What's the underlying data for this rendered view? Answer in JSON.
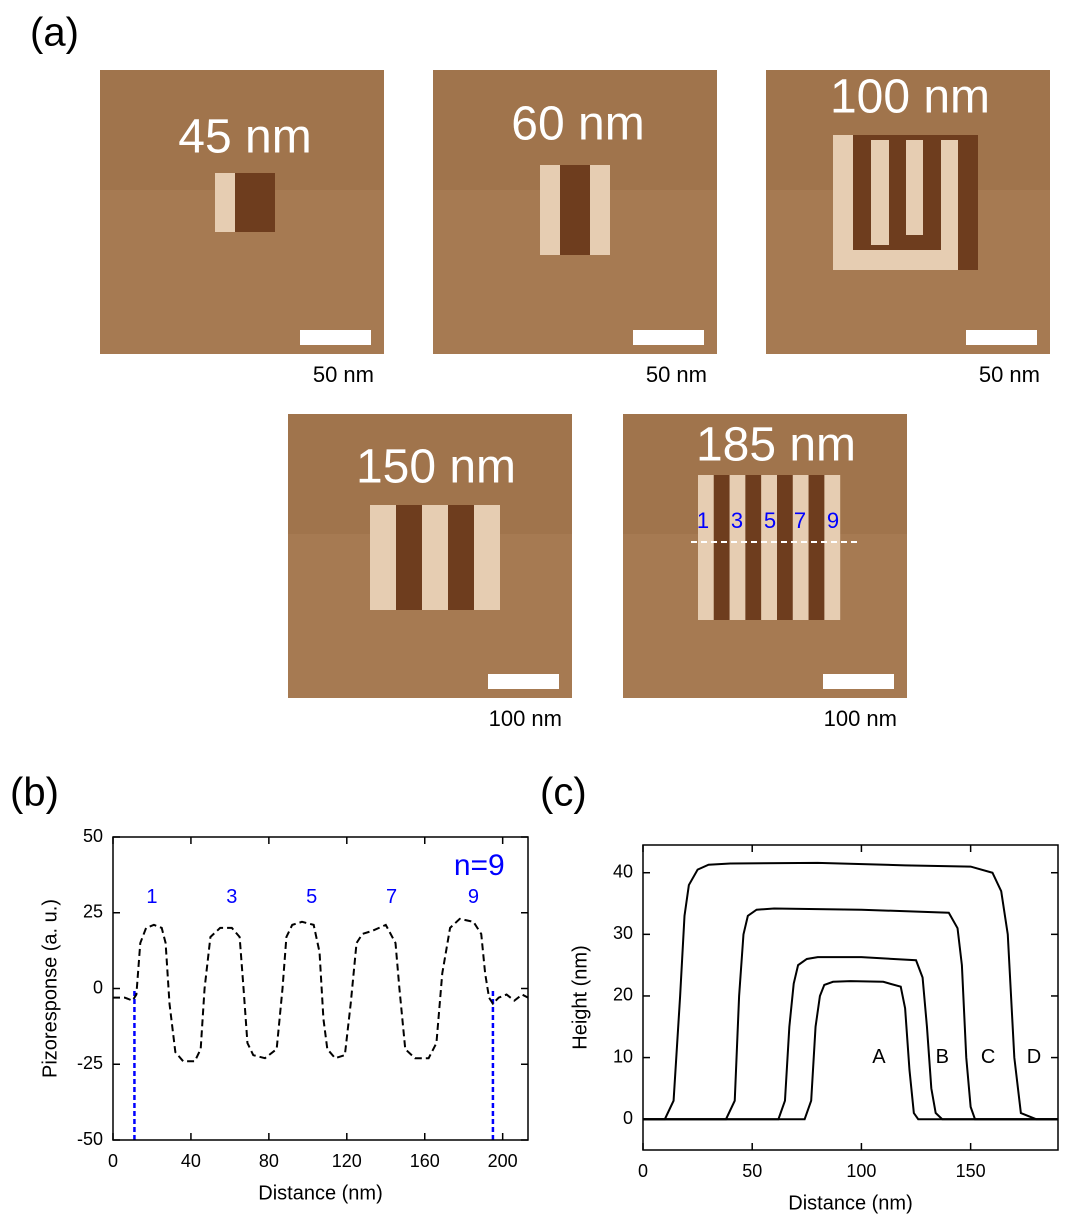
{
  "panel_a": {
    "label": "(a)",
    "images": [
      {
        "title": "45 nm",
        "scale": "50 nm"
      },
      {
        "title": "60 nm",
        "scale": "50 nm"
      },
      {
        "title": "100 nm",
        "scale": "50 nm"
      },
      {
        "title": "150 nm",
        "scale": "100 nm"
      },
      {
        "title": "185 nm",
        "scale": "100 nm"
      }
    ],
    "stripe_labels": [
      "1",
      "3",
      "5",
      "7",
      "9"
    ]
  },
  "chart_data": [
    {
      "type": "line",
      "panel_label": "(b)",
      "xlabel": "Distance (nm)",
      "ylabel": "Pizoresponse (a. u.)",
      "xlim": [
        0,
        213
      ],
      "ylim": [
        -50,
        50
      ],
      "xticks": [
        0,
        40,
        80,
        120,
        160,
        200
      ],
      "yticks": [
        -50,
        -25,
        0,
        25,
        50
      ],
      "series": [
        {
          "color": "#000000",
          "line_style": "dashed",
          "x": [
            0,
            6,
            10,
            12,
            14,
            17,
            21,
            25,
            27,
            29,
            32,
            36,
            42,
            45,
            47,
            50,
            55,
            61,
            65,
            67,
            69,
            72,
            78,
            84,
            87,
            89,
            92,
            97,
            103,
            106,
            108,
            110,
            114,
            119,
            122,
            125,
            128,
            133,
            140,
            145,
            147,
            150,
            155,
            162,
            166,
            169,
            173,
            178,
            185,
            189,
            191,
            193,
            195,
            198,
            202,
            206,
            210,
            213
          ],
          "values": [
            -3,
            -3,
            -4,
            -2,
            15,
            20,
            21,
            20,
            15,
            -5,
            -21,
            -24,
            -24,
            -20,
            0,
            17,
            20,
            20,
            17,
            0,
            -18,
            -22,
            -23,
            -20,
            0,
            17,
            21,
            22,
            21,
            12,
            -10,
            -20,
            -23,
            -22,
            -5,
            15,
            18,
            19,
            21,
            15,
            0,
            -20,
            -23,
            -23,
            -18,
            5,
            20,
            23,
            22,
            18,
            5,
            -3,
            -5,
            -3,
            -2,
            -4,
            -2,
            -3
          ]
        }
      ],
      "vlines": [
        11,
        195
      ],
      "vline_color": "#0000ff",
      "annotations": [
        {
          "text": "n=9",
          "x": 188,
          "y": 40,
          "color": "#0000ff",
          "size": 30
        },
        {
          "text": "1",
          "x": 20,
          "y": 30,
          "color": "#0000ff",
          "size": 20
        },
        {
          "text": "3",
          "x": 61,
          "y": 30,
          "color": "#0000ff",
          "size": 20
        },
        {
          "text": "5",
          "x": 102,
          "y": 30,
          "color": "#0000ff",
          "size": 20
        },
        {
          "text": "7",
          "x": 143,
          "y": 30,
          "color": "#0000ff",
          "size": 20
        },
        {
          "text": "9",
          "x": 185,
          "y": 30,
          "color": "#0000ff",
          "size": 20
        }
      ]
    },
    {
      "type": "line",
      "panel_label": "(c)",
      "xlabel": "Distance (nm)",
      "ylabel": "Height (nm)",
      "xlim": [
        0,
        190
      ],
      "ylim": [
        -5,
        44.5
      ],
      "xticks": [
        0,
        50,
        100,
        150
      ],
      "yticks": [
        0,
        10,
        20,
        30,
        40
      ],
      "series": [
        {
          "color": "#000000",
          "line_style": "solid",
          "x": [
            0,
            74,
            77,
            79,
            81,
            83,
            87,
            95,
            110,
            118,
            120,
            122,
            124,
            126,
            190
          ],
          "values": [
            0,
            0,
            3,
            15,
            20,
            21.8,
            22.3,
            22.4,
            22.3,
            21.5,
            18,
            8,
            1,
            0,
            0
          ]
        },
        {
          "color": "#000000",
          "line_style": "solid",
          "x": [
            0,
            62,
            65,
            67,
            69,
            71,
            75,
            80,
            100,
            125,
            128,
            130,
            132,
            134,
            137,
            190
          ],
          "values": [
            0,
            0,
            3,
            15,
            22,
            25,
            26,
            26.3,
            26.3,
            25.8,
            23,
            15,
            5,
            1,
            0,
            0
          ]
        },
        {
          "color": "#000000",
          "line_style": "solid",
          "x": [
            0,
            38,
            42,
            44,
            46,
            48,
            52,
            60,
            100,
            140,
            144,
            146,
            148,
            150,
            152,
            190
          ],
          "values": [
            0,
            0,
            3,
            20,
            30,
            33,
            34,
            34.2,
            34,
            33.5,
            31,
            25,
            10,
            2,
            0,
            0
          ]
        },
        {
          "color": "#000000",
          "line_style": "solid",
          "x": [
            0,
            10,
            14,
            17,
            19,
            21,
            25,
            30,
            40,
            80,
            120,
            150,
            160,
            164,
            167,
            170,
            173,
            180,
            190
          ],
          "values": [
            0,
            0,
            3,
            20,
            33,
            38,
            40.5,
            41.3,
            41.5,
            41.6,
            41.2,
            41,
            40,
            37,
            30,
            10,
            1,
            0,
            0
          ]
        }
      ],
      "annotations": [
        {
          "text": "A",
          "x": 108,
          "y": 10,
          "color": "#000000",
          "size": 20
        },
        {
          "text": "B",
          "x": 137,
          "y": 10,
          "color": "#000000",
          "size": 20
        },
        {
          "text": "C",
          "x": 158,
          "y": 10,
          "color": "#000000",
          "size": 20
        },
        {
          "text": "D",
          "x": 179,
          "y": 10,
          "color": "#000000",
          "size": 20
        }
      ]
    }
  ]
}
